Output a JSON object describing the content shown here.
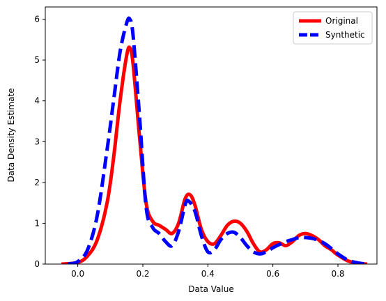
{
  "chart_data": {
    "type": "line",
    "title": "",
    "xlabel": "Data Value",
    "ylabel": "Data Density Estimate",
    "xlim": [
      -0.1,
      0.92
    ],
    "ylim": [
      0,
      6.3
    ],
    "xticks": [
      0.0,
      0.2,
      0.4,
      0.6,
      0.8
    ],
    "xtick_labels": [
      "0.0",
      "0.2",
      "0.4",
      "0.6",
      "0.8"
    ],
    "yticks": [
      0,
      1,
      2,
      3,
      4,
      5,
      6
    ],
    "ytick_labels": [
      "0",
      "1",
      "2",
      "3",
      "4",
      "5",
      "6"
    ],
    "grid": false,
    "legend_position": "top-right",
    "series": [
      {
        "name": "Original",
        "color": "#ff0000",
        "style": "solid",
        "x": [
          -0.05,
          0.0,
          0.03,
          0.06,
          0.09,
          0.11,
          0.13,
          0.15,
          0.16,
          0.17,
          0.19,
          0.21,
          0.23,
          0.25,
          0.27,
          0.29,
          0.31,
          0.33,
          0.345,
          0.36,
          0.38,
          0.4,
          0.42,
          0.44,
          0.46,
          0.48,
          0.5,
          0.52,
          0.54,
          0.56,
          0.58,
          0.6,
          0.62,
          0.64,
          0.66,
          0.68,
          0.7,
          0.72,
          0.74,
          0.76,
          0.78,
          0.8,
          0.83,
          0.86,
          0.89
        ],
        "y": [
          0.0,
          0.04,
          0.2,
          0.6,
          1.5,
          2.6,
          4.0,
          5.1,
          5.3,
          4.9,
          3.1,
          1.5,
          1.05,
          0.95,
          0.85,
          0.75,
          1.0,
          1.6,
          1.7,
          1.45,
          0.85,
          0.55,
          0.5,
          0.7,
          0.95,
          1.05,
          1.0,
          0.8,
          0.5,
          0.3,
          0.35,
          0.5,
          0.52,
          0.45,
          0.55,
          0.7,
          0.75,
          0.7,
          0.6,
          0.45,
          0.35,
          0.22,
          0.08,
          0.02,
          0.0
        ]
      },
      {
        "name": "Synthetic",
        "color": "#0000ff",
        "style": "dashed",
        "x": [
          -0.03,
          0.0,
          0.03,
          0.06,
          0.09,
          0.11,
          0.13,
          0.15,
          0.16,
          0.17,
          0.19,
          0.21,
          0.23,
          0.25,
          0.27,
          0.29,
          0.31,
          0.33,
          0.34,
          0.36,
          0.38,
          0.4,
          0.42,
          0.44,
          0.46,
          0.48,
          0.5,
          0.52,
          0.54,
          0.56,
          0.58,
          0.6,
          0.62,
          0.64,
          0.66,
          0.68,
          0.7,
          0.72,
          0.74,
          0.76,
          0.78,
          0.8,
          0.83,
          0.86,
          0.89
        ],
        "y": [
          0.0,
          0.06,
          0.35,
          1.2,
          2.8,
          4.0,
          5.2,
          5.9,
          6.0,
          5.6,
          3.6,
          1.4,
          0.9,
          0.75,
          0.55,
          0.45,
          0.8,
          1.45,
          1.55,
          1.3,
          0.7,
          0.3,
          0.35,
          0.6,
          0.75,
          0.78,
          0.65,
          0.45,
          0.3,
          0.25,
          0.3,
          0.4,
          0.48,
          0.55,
          0.6,
          0.65,
          0.65,
          0.63,
          0.58,
          0.5,
          0.38,
          0.25,
          0.1,
          0.03,
          0.0
        ]
      }
    ]
  }
}
